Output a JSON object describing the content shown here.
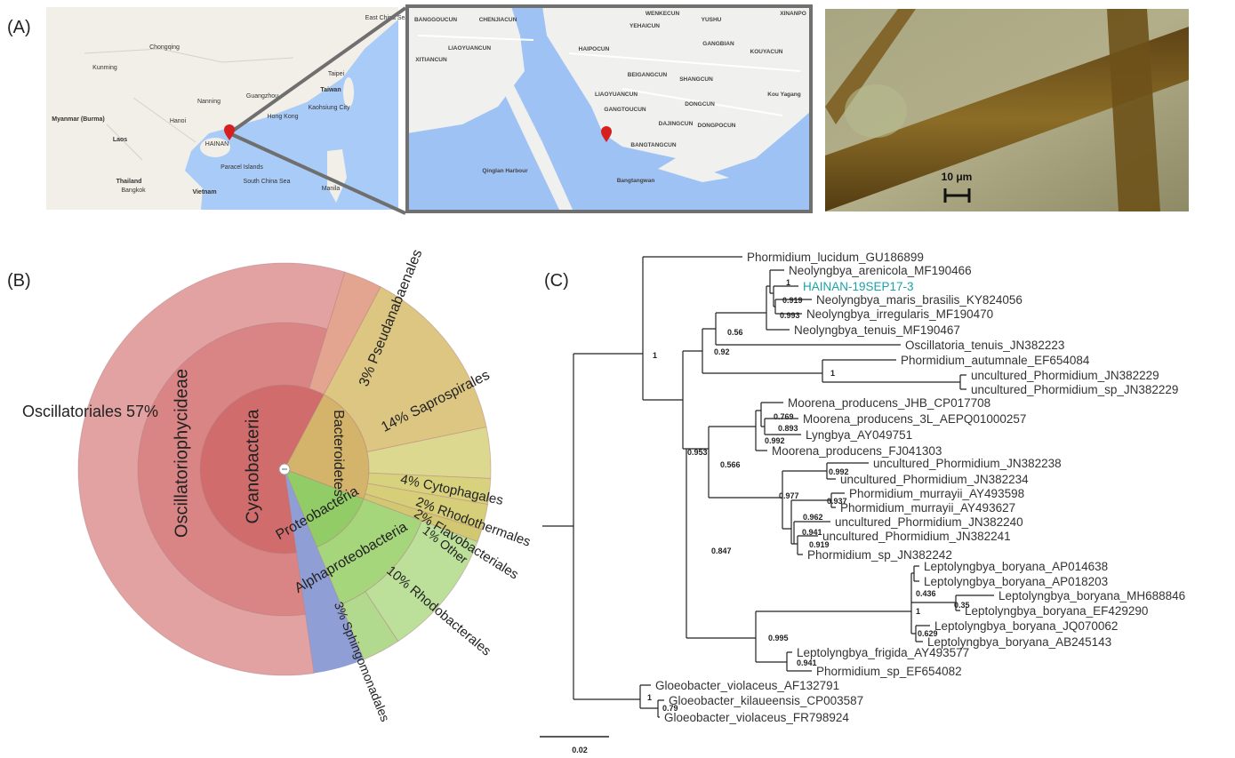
{
  "panel_a": {
    "label": "(A)",
    "map_region": {
      "places": [
        "East China Sea",
        "Kunming",
        "Chongqing",
        "Nanning",
        "Guangzhou",
        "Hanoi",
        "Hong Kong",
        "Taipei",
        "Taiwan",
        "Kaohsiung City",
        "Myanmar (Burma)",
        "Laos",
        "HAINAN",
        "Paracel Islands",
        "Thailand",
        "Bangkok",
        "Vietnam",
        "South China Sea",
        "Manila"
      ]
    },
    "map_detail": {
      "places": [
        "BANGGOUCUN",
        "CHENJIACUN",
        "WENKECUN",
        "YEHAICUN",
        "YUSHU",
        "XINANPO",
        "GANGBIAN",
        "KOUYACUN",
        "XITIANCUN",
        "LIAOYUANCUN",
        "HAIPOCUN",
        "BEIGANGCUN",
        "SHANGCUN",
        "LIAOYUANCUN",
        "GANGTOUCUN",
        "DONGCUN",
        "DAJINGCUN",
        "DONGPOCUN",
        "BANGTANGCUN",
        "Kou Yagang",
        "Qinglan Harbour",
        "Bangtangwan"
      ]
    },
    "micrograph": {
      "scale_bar": "10 μm"
    }
  },
  "panel_b": {
    "label": "(B)",
    "sunburst": {
      "nodes": [
        {
          "label": "Cyanobacteria",
          "color": "#d06c6c",
          "children": [
            {
              "label": "Oscillatoriophycideae",
              "color": "#d98585",
              "children": [
                {
                  "label": "Oscillatoriales 57%",
                  "value": 57,
                  "color": "#e3a2a2"
                }
              ]
            },
            {
              "label": "3% Pseudanabaenales",
              "value": 3,
              "color": "#e3a58f"
            }
          ]
        },
        {
          "label": "Bacteroidetes",
          "color": "#d4b46a",
          "children": [
            {
              "label": "14% Saprospirales",
              "value": 14,
              "color": "#dcc682"
            },
            {
              "label": "4% Cytophagales",
              "value": 4,
              "color": "#dcd890"
            },
            {
              "label": "2% Rhodothermales",
              "value": 2,
              "color": "#d8d27e"
            },
            {
              "label": "2% Flavobacteriales",
              "value": 2,
              "color": "#d6ce78"
            },
            {
              "label": "1% Other",
              "value": 1,
              "color": "#d2c872"
            }
          ]
        },
        {
          "label": "Proteobacteria",
          "color": "#92cc66",
          "children": [
            {
              "label": "Alphaproteobacteria",
              "color": "#a6d67c",
              "children": [
                {
                  "label": "10% Rhodobacterales",
                  "value": 10,
                  "color": "#bce09a"
                },
                {
                  "label": "3% Sphingomonadales",
                  "value": 3,
                  "color": "#b2da8e"
                }
              ]
            }
          ]
        }
      ]
    }
  },
  "panel_c": {
    "label": "(C)",
    "taxa": [
      "Phormidium_lucidum_GU186899",
      "Neolyngbya_arenicola_MF190466",
      "HAINAN-19SEP17-3",
      "Neolyngbya_maris_brasilis_KY824056",
      "Neolyngbya_irregularis_MF190470",
      "Neolyngbya_tenuis_MF190467",
      "Oscillatoria_tenuis_JN382223",
      "Phormidium_autumnale_EF654084",
      "uncultured_Phormidium_JN382229",
      "uncultured_Phormidium_sp_JN382229",
      "Moorena_producens_JHB_CP017708",
      "Moorena_producens_3L_AEPQ01000257",
      "Lyngbya_AY049751",
      "Moorena_producens_FJ041303",
      "uncultured_Phormidium_JN382238",
      "uncultured_Phormidium_JN382234",
      "Phormidium_murrayii_AY493598",
      "Phormidium_murrayii_AY493627",
      "uncultured_Phormidium_JN382240",
      "uncultured_Phormidium_JN382241",
      "Phormidium_sp_JN382242",
      "Leptolyngbya_boryana_AP014638",
      "Leptolyngbya_boryana_AP018203",
      "Leptolyngbya_boryana_MH688846",
      "Leptolyngbya_boryana_EF429290",
      "Leptolyngbya_boryana_JQ070062",
      "Leptolyngbya_boryana_AB245143",
      "Leptolyngbya_frigida_AY493577",
      "Phormidium_sp_EF654082",
      "Gloeobacter_violaceus_AF132791",
      "Gloeobacter_kilaueensis_CP003587",
      "Gloeobacter_violaceus_FR798924"
    ],
    "support": [
      1,
      1,
      0.919,
      0.993,
      0.56,
      0.92,
      1,
      0.769,
      0.893,
      0.992,
      0.953,
      0.566,
      0.992,
      0.977,
      0.937,
      0.962,
      0.941,
      0.919,
      0.847,
      0.436,
      0.35,
      1,
      0.629,
      0.995,
      0.941,
      1,
      0.79
    ],
    "scale_bar": 0.02
  }
}
